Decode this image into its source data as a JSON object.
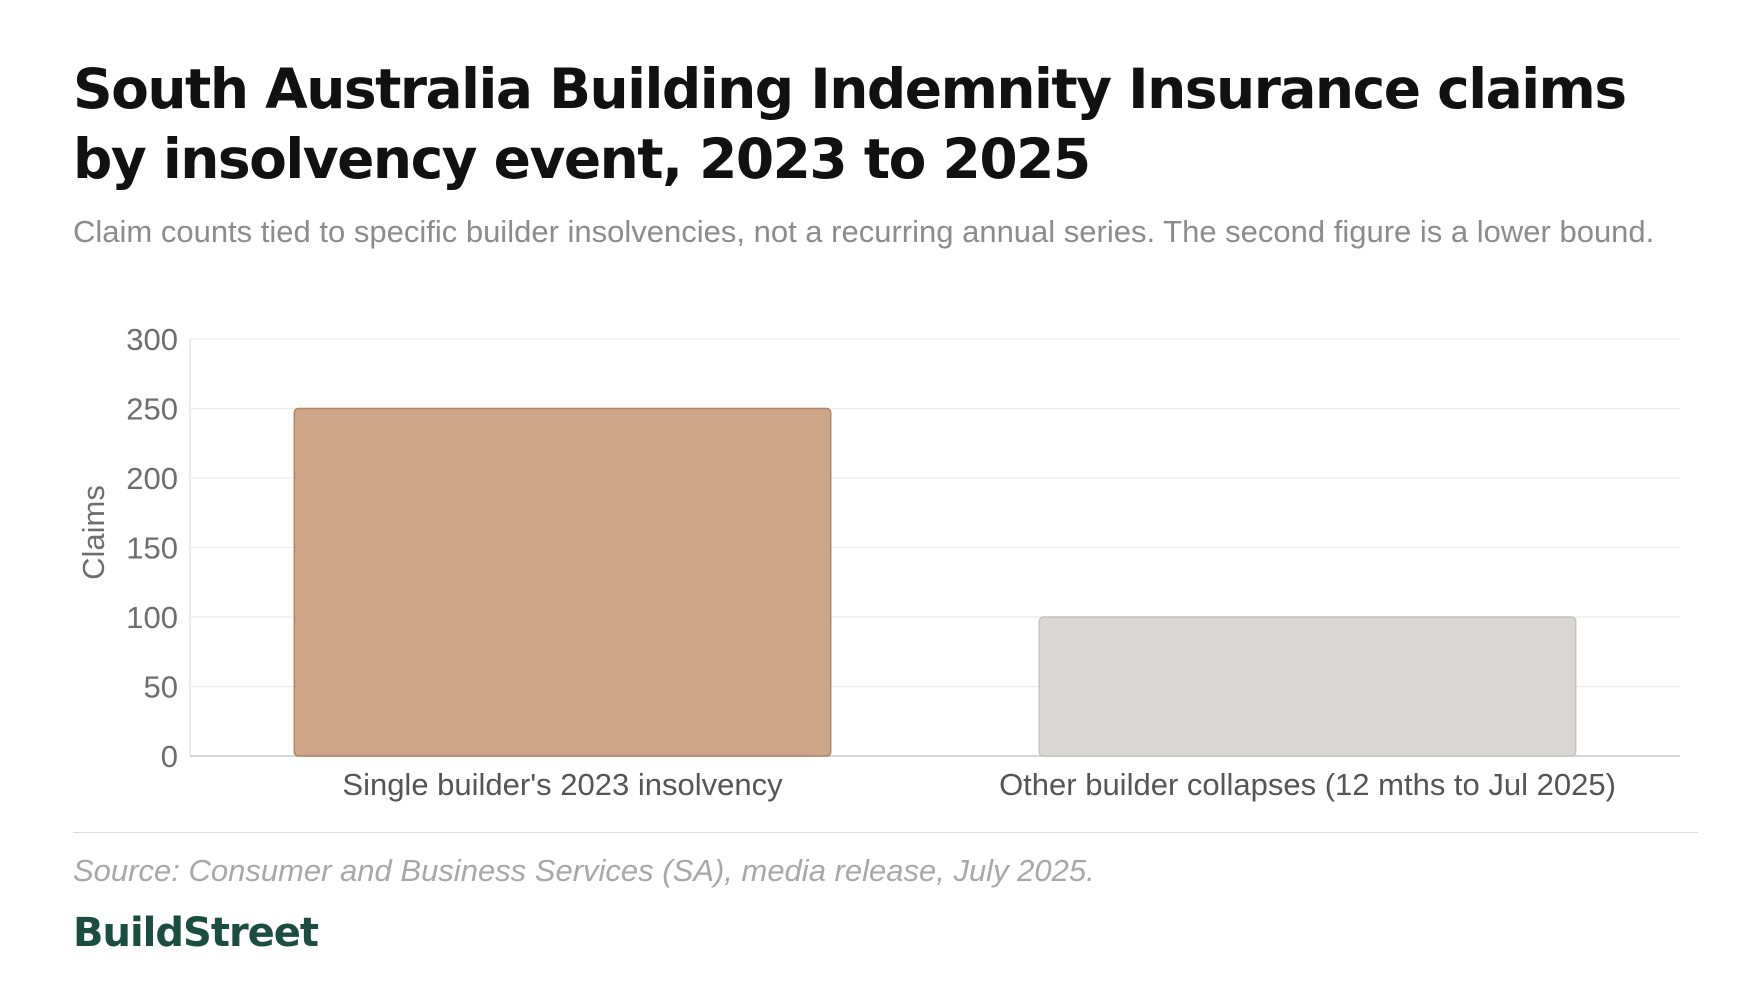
{
  "header": {
    "title": "South Australia Building Indemnity Insurance claims by insolvency event, 2023 to 2025",
    "subtitle": "Claim counts tied to specific builder insolvencies, not a recurring annual series. The second figure is a lower bound."
  },
  "chart_data": {
    "type": "bar",
    "categories": [
      "Single builder's 2023 insolvency",
      "Other builder collapses (12 mths to Jul 2025)"
    ],
    "values": [
      250,
      100
    ],
    "ylabel": "Claims",
    "ylim": [
      0,
      300
    ],
    "yticks": [
      0,
      50,
      100,
      150,
      200,
      250,
      300
    ],
    "grid": true,
    "bar_colors": [
      "#cda689",
      "#d9d8d4"
    ],
    "bar_stroke_colors": [
      "#b08465",
      "#c4c3bf"
    ]
  },
  "footer": {
    "source": "Source: Consumer and Business Services (SA), media release, July 2025.",
    "brand": "BuildStreet"
  }
}
